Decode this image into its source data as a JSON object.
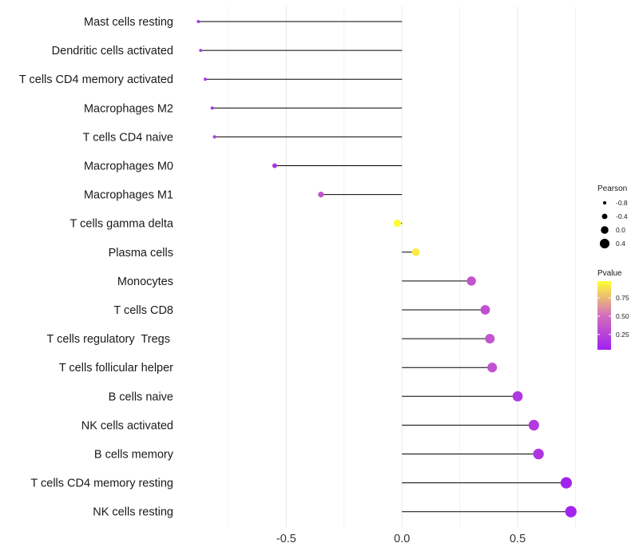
{
  "chart_data": {
    "type": "lollipop",
    "title": "",
    "xlabel": "",
    "ylabel": "",
    "xlim": [
      -0.95,
      0.8
    ],
    "x_ticks": [
      -0.5,
      0.0,
      0.5
    ],
    "x_tick_labels": [
      "-0.5",
      "0.0",
      "0.5"
    ],
    "grid": true,
    "categories": [
      "Mast cells resting",
      "Dendritic cells activated",
      "T cells CD4 memory activated",
      "Macrophages M2",
      "T cells CD4 naive",
      "Macrophages M0",
      "Macrophages M1",
      "T cells gamma delta",
      "Plasma cells",
      "Monocytes",
      "T cells CD8",
      "T cells regulatory  Tregs ",
      "T cells follicular helper",
      "B cells naive",
      "NK cells activated",
      "B cells memory",
      "T cells CD4 memory resting",
      "NK cells resting"
    ],
    "pearson": [
      -0.88,
      -0.87,
      -0.85,
      -0.82,
      -0.81,
      -0.55,
      -0.35,
      -0.02,
      0.06,
      0.3,
      0.36,
      0.38,
      0.39,
      0.5,
      0.57,
      0.59,
      0.71,
      0.73
    ],
    "pvalue": [
      0.12,
      0.13,
      0.15,
      0.18,
      0.19,
      0.14,
      0.35,
      0.97,
      0.92,
      0.35,
      0.33,
      0.36,
      0.34,
      0.18,
      0.2,
      0.17,
      0.06,
      0.07
    ],
    "legend_size": {
      "title": "Pearson",
      "breaks": [
        -0.8,
        -0.4,
        0.0,
        0.4
      ],
      "labels": [
        "-0.8",
        "-0.4",
        "0.0",
        "0.4"
      ]
    },
    "legend_color": {
      "title": "Pvalue",
      "breaks": [
        0.25,
        0.5,
        0.75
      ],
      "labels": [
        "0.25",
        "0.50",
        "0.75"
      ],
      "range": [
        0.04,
        0.98
      ],
      "low_color": "#A020F0",
      "mid_color": "#D36FBC",
      "high_color": "#FFFF33"
    },
    "segment_color": "#000000",
    "grid_color": "#ebebeb"
  }
}
